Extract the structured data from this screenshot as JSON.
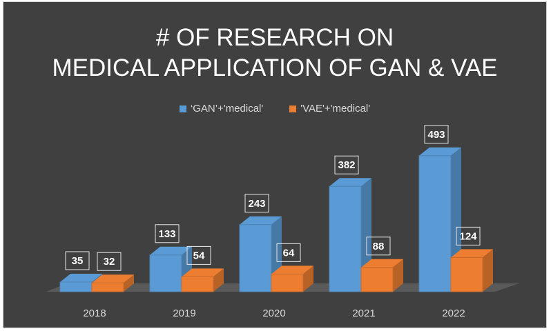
{
  "colors": {
    "background": "#404040",
    "gan": "#5b9bd5",
    "vae": "#ed7d31",
    "text": "#ffffff",
    "axis_text": "#d9d9d9"
  },
  "chart_data": {
    "type": "bar",
    "title_lines": [
      "# OF RESEARCH ON",
      "MEDICAL APPLICATION OF GAN & VAE"
    ],
    "categories": [
      "2018",
      "2019",
      "2020",
      "2021",
      "2022"
    ],
    "series": [
      {
        "name": "‘GAN’+'medical'",
        "values": [
          35,
          133,
          243,
          382,
          493
        ]
      },
      {
        "name": "'VAE'+'medical'",
        "values": [
          32,
          54,
          64,
          88,
          124
        ]
      }
    ],
    "ylim": [
      0,
      500
    ],
    "grid": false,
    "legend": "top-center",
    "data_labels": true,
    "style": "3d-clustered-column"
  }
}
